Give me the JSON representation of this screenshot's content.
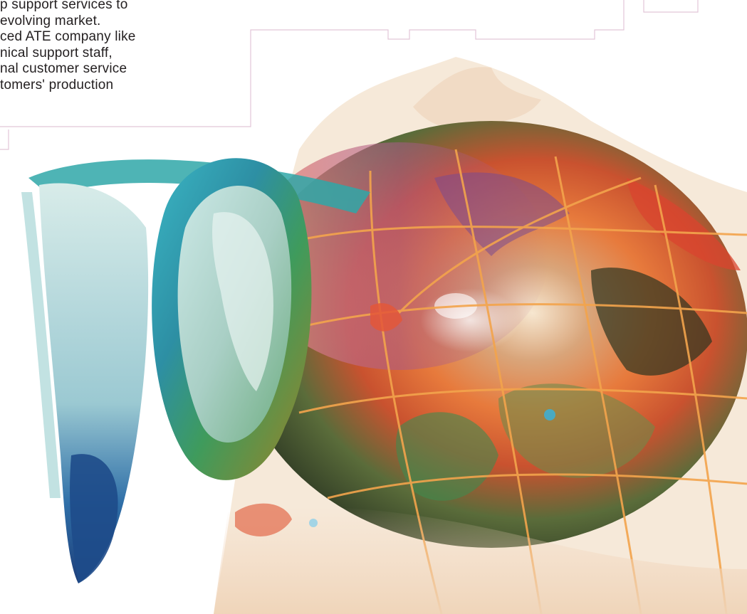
{
  "body_text": {
    "lines": [
      "p support services to",
      "evolving market.",
      "ced ATE company like",
      "nical support staff,",
      "nal customer service",
      "tomers' production"
    ]
  },
  "colors": {
    "frame_line": "#e2c6d8",
    "text": "#231f20",
    "globe_orange": "#f08a3c",
    "globe_red": "#e2483c",
    "ring_teal": "#2fa7a8",
    "ring_green": "#3d9a5a",
    "sky_cream": "#f6e9d9"
  },
  "illustration": {
    "subject": "globe-with-ring-illustration"
  }
}
